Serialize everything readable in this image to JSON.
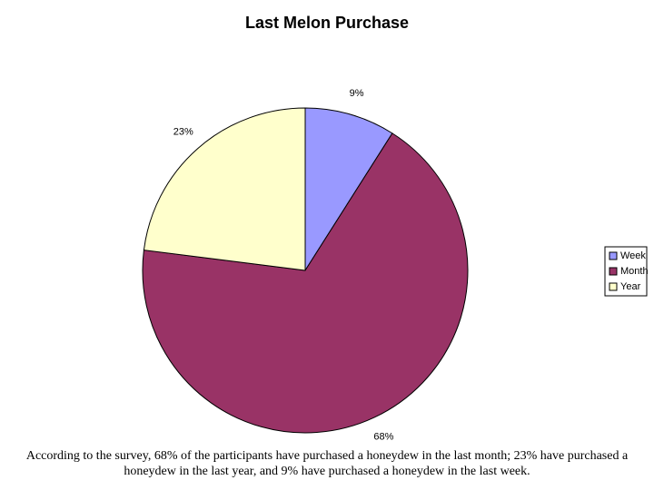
{
  "chart_data": {
    "type": "pie",
    "title": "Last Melon Purchase",
    "categories": [
      "Week",
      "Month",
      "Year"
    ],
    "values": [
      9,
      68,
      23
    ],
    "value_labels": [
      "9%",
      "68%",
      "23%"
    ],
    "colors": [
      "#9999ff",
      "#993366",
      "#ffffcc"
    ],
    "legend": "right",
    "annotation": "According to the survey, 68% of the participants have purchased a honeydew in the last month; 23% have purchased a honeydew in the last year, and 9% have purchased a honeydew in the last week."
  }
}
